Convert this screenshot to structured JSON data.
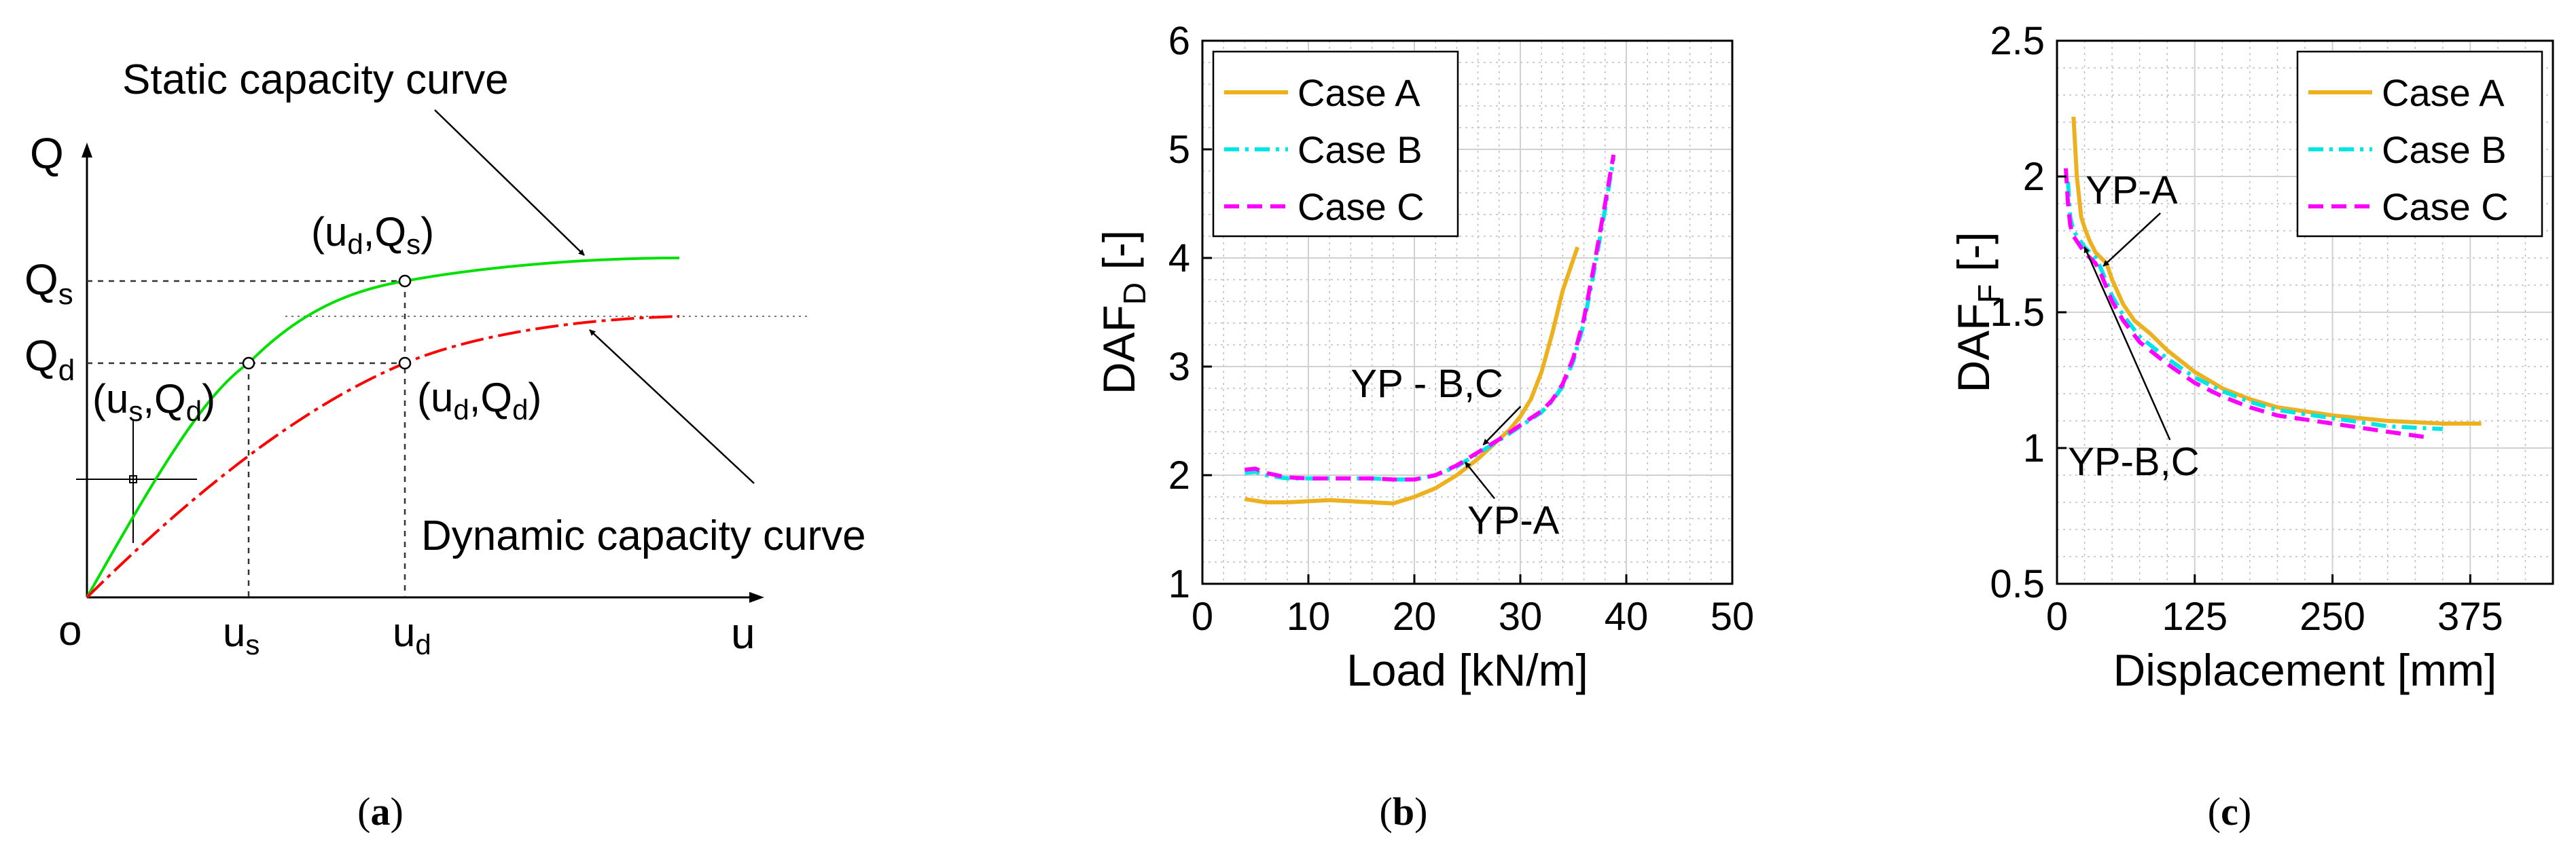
{
  "panels": {
    "a": {
      "caption_label": "a",
      "axis_y": "Q",
      "axis_x": "u",
      "origin": "o",
      "tick_Qs": "Q",
      "tick_Qs_sub": "s",
      "tick_Qd": "Q",
      "tick_Qd_sub": "d",
      "tick_us": "u",
      "tick_us_sub": "s",
      "tick_ud": "u",
      "tick_ud_sub": "d",
      "point_ud_Qs": "(u",
      "point_ud_Qs_sub1": "d",
      "point_ud_Qs_mid": ",Q",
      "point_ud_Qs_sub2": "s",
      "point_ud_Qs_end": ")",
      "point_us_Qd": "(u",
      "point_us_Qd_sub1": "s",
      "point_us_Qd_mid": ",Q",
      "point_us_Qd_sub2": "d",
      "point_us_Qd_end": ")",
      "point_ud_Qd": "(u",
      "point_ud_Qd_sub1": "d",
      "point_ud_Qd_mid": ",Q",
      "point_ud_Qd_sub2": "d",
      "point_ud_Qd_end": ")",
      "label_static": "Static capacity curve",
      "label_dynamic": "Dynamic capacity curve",
      "color_static": "#00e000",
      "color_dynamic": "#ff0000"
    },
    "b": {
      "caption_label": "b"
    },
    "c": {
      "caption_label": "c"
    }
  },
  "chart_data": [
    {
      "id": "b",
      "type": "line",
      "xlabel": "Load [kN/m]",
      "ylabel": "DAF",
      "ylabel_sub": "D",
      "ylabel_suffix": " [-]",
      "xlim": [
        0,
        50
      ],
      "ylim": [
        1,
        6
      ],
      "xticks": [
        0,
        10,
        20,
        30,
        40,
        50
      ],
      "yticks": [
        1,
        2,
        3,
        4,
        5,
        6
      ],
      "grid": true,
      "legend_position": "top-left",
      "series": [
        {
          "name": "Case A",
          "color": "#edb120",
          "dash": "solid",
          "x": [
            4,
            6,
            8,
            10,
            12,
            14,
            16,
            18,
            20,
            22,
            24,
            26,
            27,
            28,
            29,
            30,
            31,
            32,
            33,
            34,
            35.4
          ],
          "y": [
            1.78,
            1.75,
            1.75,
            1.76,
            1.77,
            1.76,
            1.75,
            1.74,
            1.8,
            1.88,
            2.0,
            2.15,
            2.24,
            2.33,
            2.42,
            2.54,
            2.7,
            2.95,
            3.3,
            3.7,
            4.1
          ]
        },
        {
          "name": "Case B",
          "color": "#00e5e5",
          "dash": "dashdot",
          "x": [
            4,
            5,
            6,
            8,
            10,
            12,
            14,
            16,
            18,
            20,
            22,
            24,
            26,
            28,
            30,
            32,
            33,
            34,
            35,
            36,
            37,
            38,
            38.8
          ],
          "y": [
            2.02,
            2.03,
            2.0,
            1.97,
            1.97,
            1.97,
            1.97,
            1.97,
            1.96,
            1.96,
            2.0,
            2.08,
            2.2,
            2.32,
            2.45,
            2.58,
            2.68,
            2.82,
            3.05,
            3.4,
            3.9,
            4.45,
            4.92
          ]
        },
        {
          "name": "Case C",
          "color": "#ff00ff",
          "dash": "dash",
          "x": [
            4,
            5,
            6,
            8,
            10,
            12,
            14,
            16,
            18,
            20,
            22,
            24,
            26,
            28,
            30,
            32,
            33,
            34,
            35,
            36,
            37,
            38,
            38.8
          ],
          "y": [
            2.05,
            2.06,
            2.02,
            1.98,
            1.97,
            1.97,
            1.97,
            1.97,
            1.96,
            1.96,
            2.0,
            2.09,
            2.21,
            2.33,
            2.46,
            2.59,
            2.69,
            2.84,
            3.08,
            3.44,
            3.95,
            4.5,
            4.95
          ]
        }
      ],
      "annotations": [
        {
          "text": "YP - B,C",
          "tx": 14,
          "ty": 2.72,
          "ax": 26.5,
          "ay": 2.28
        },
        {
          "text": "YP-A",
          "tx": 25,
          "ty": 1.46,
          "ax": 24.8,
          "ay": 2.12
        }
      ]
    },
    {
      "id": "c",
      "type": "line",
      "xlabel": "Displacement [mm]",
      "ylabel": "DAF",
      "ylabel_sub": "F",
      "ylabel_suffix": " [-]",
      "xlim": [
        0,
        450
      ],
      "ylim": [
        0.5,
        2.5
      ],
      "xticks": [
        0,
        125,
        250,
        375
      ],
      "yticks": [
        0.5,
        1,
        1.5,
        2,
        2.5
      ],
      "grid": true,
      "legend_position": "top-right",
      "series": [
        {
          "name": "Case A",
          "color": "#edb120",
          "dash": "solid",
          "x": [
            15,
            18,
            22,
            26,
            30,
            35,
            40,
            45,
            50,
            60,
            70,
            85,
            100,
            125,
            150,
            175,
            200,
            250,
            300,
            350,
            385
          ],
          "y": [
            2.22,
            2.0,
            1.85,
            1.8,
            1.76,
            1.72,
            1.7,
            1.68,
            1.62,
            1.53,
            1.47,
            1.42,
            1.36,
            1.28,
            1.22,
            1.18,
            1.15,
            1.12,
            1.1,
            1.09,
            1.09
          ]
        },
        {
          "name": "Case B",
          "color": "#00e5e5",
          "dash": "dashdot",
          "x": [
            10,
            12,
            15,
            20,
            25,
            30,
            35,
            40,
            50,
            60,
            75,
            100,
            125,
            150,
            175,
            200,
            250,
            300,
            350
          ],
          "y": [
            1.98,
            1.85,
            1.8,
            1.77,
            1.74,
            1.72,
            1.7,
            1.66,
            1.56,
            1.49,
            1.41,
            1.33,
            1.26,
            1.21,
            1.17,
            1.14,
            1.11,
            1.08,
            1.07
          ]
        },
        {
          "name": "Case C",
          "color": "#ff00ff",
          "dash": "dash",
          "x": [
            8,
            10,
            12,
            15,
            20,
            25,
            30,
            35,
            40,
            50,
            60,
            75,
            100,
            125,
            150,
            175,
            200,
            250,
            300,
            335
          ],
          "y": [
            2.03,
            1.9,
            1.82,
            1.78,
            1.75,
            1.72,
            1.7,
            1.68,
            1.64,
            1.54,
            1.47,
            1.39,
            1.31,
            1.24,
            1.19,
            1.15,
            1.12,
            1.09,
            1.06,
            1.04
          ]
        }
      ],
      "annotations": [
        {
          "text": "YP-A",
          "tx": 26,
          "ty": 1.9,
          "ax": 42,
          "ay": 1.67
        },
        {
          "text": "YP-B,C",
          "tx": 10,
          "ty": 0.9,
          "ax": 25,
          "ay": 1.74
        }
      ]
    }
  ]
}
